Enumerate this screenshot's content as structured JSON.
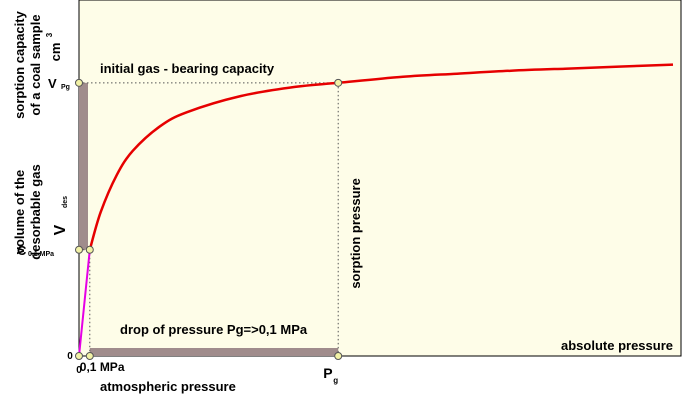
{
  "chart_data": {
    "type": "line",
    "xlabel": "absolute pressure",
    "y_axis_labels": {
      "top_line1": "sorption capacity",
      "top_line2": "of a coal sample",
      "top_unit": "cm",
      "top_unit_sup": "3",
      "lower_line1": "volume of the",
      "lower_line2": "desorbable gas",
      "v_main": "V",
      "v_sub": "des"
    },
    "y_ticks": {
      "zero": "0",
      "c_main": "C",
      "c_sub": "0,1 MPa",
      "v_main": "V",
      "v_sub": "Pg"
    },
    "x_ticks": {
      "zero": "0",
      "p01": "0,1 MPa",
      "pg_main": "P",
      "pg_sub": "g"
    },
    "annotations": {
      "initial_capacity": "initial gas - bearing capacity",
      "drop_of_pressure": "drop of pressure Pg=>0,1 MPa",
      "sorption_pressure": "sorption pressure",
      "atmospheric_pressure": "atmospheric pressure"
    },
    "series": [
      {
        "color": "#e60000",
        "x": [
          0.1,
          0.2,
          0.35,
          0.5,
          0.75,
          1.0,
          1.5,
          2.0,
          2.4,
          3.0,
          3.5,
          4.0,
          4.5,
          5.0,
          5.5
        ],
        "y": [
          1.05,
          1.42,
          1.79,
          2.03,
          2.27,
          2.41,
          2.57,
          2.66,
          2.7,
          2.76,
          2.79,
          2.82,
          2.84,
          2.86,
          2.88
        ]
      },
      {
        "color": "#e600e6",
        "x": [
          0,
          0.1
        ],
        "y": [
          0,
          1.05
        ]
      }
    ],
    "points": {
      "x01": 0.1,
      "c01": 1.05,
      "pg": 2.4,
      "vpg": 2.7
    },
    "xlim": [
      0,
      5.5
    ],
    "ylim": [
      0,
      3.4
    ],
    "colors": {
      "plot_bg": "#fefde8",
      "desorbable_band": "#a08c8c",
      "marker_fill": "#f2f2a6"
    }
  }
}
